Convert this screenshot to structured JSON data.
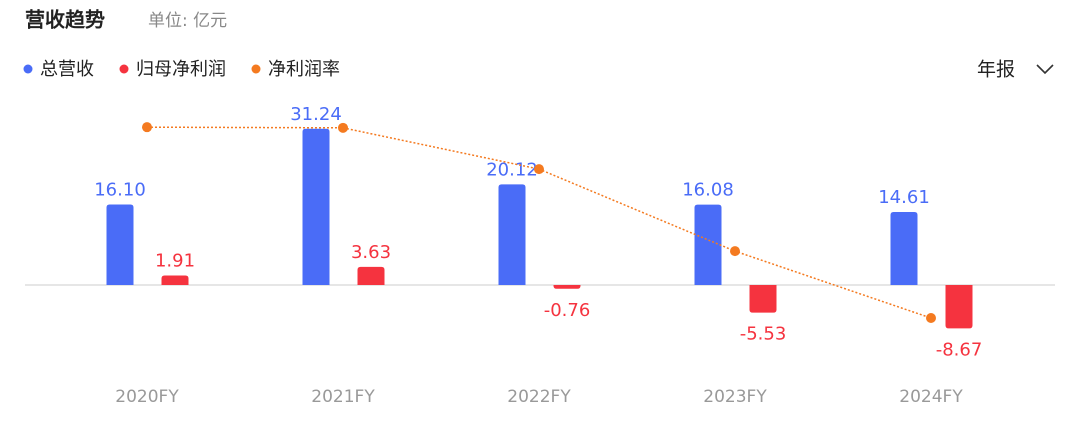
{
  "chart_data": {
    "type": "bar",
    "title": "营收趋势",
    "unit": "单位: 亿元",
    "period_selector": "年报",
    "categories": [
      "2020FY",
      "2021FY",
      "2022FY",
      "2023FY",
      "2024FY"
    ],
    "ylim": [
      -15,
      37
    ],
    "y2lim": [
      -75,
      22
    ],
    "series": [
      {
        "name": "总营收",
        "type": "bar",
        "color": "#4a6cf7",
        "values": [
          16.1,
          31.24,
          20.12,
          16.08,
          14.61
        ],
        "value_labels": [
          "16.10",
          "31.24",
          "20.12",
          "16.08",
          "14.61"
        ]
      },
      {
        "name": "归母净利润",
        "type": "bar",
        "color": "#f5333f",
        "values": [
          1.91,
          3.63,
          -0.76,
          -5.53,
          -8.67
        ],
        "value_labels": [
          "1.91",
          "3.63",
          "-0.76",
          "-5.53",
          "-8.67"
        ]
      },
      {
        "name": "净利润率",
        "type": "line",
        "axis": "y2",
        "color": "#f47a20",
        "values": [
          11.86,
          11.62,
          -3.78,
          -34.39,
          -59.34
        ]
      }
    ]
  }
}
